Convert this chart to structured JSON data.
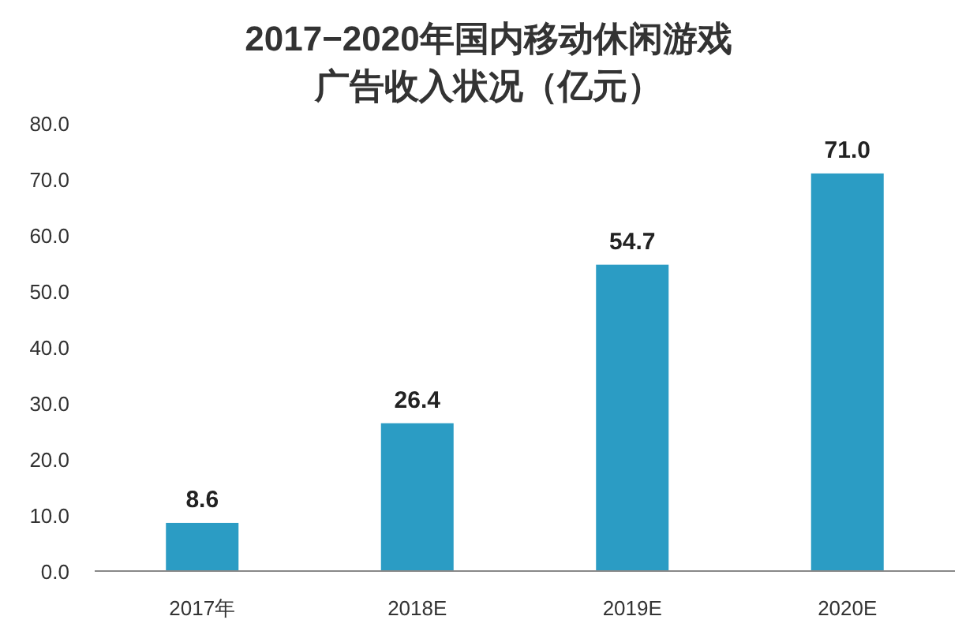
{
  "chart_data": {
    "type": "bar",
    "title": "2017−2020年国内移动休闲游戏",
    "subtitle": "广告收入状况（亿元）",
    "categories": [
      "2017年",
      "2018E",
      "2019E",
      "2020E"
    ],
    "values": [
      8.6,
      26.4,
      54.7,
      71.0
    ],
    "value_labels": [
      "8.6",
      "26.4",
      "54.7",
      "71.0"
    ],
    "color": "#2b9cc4",
    "ylim": [
      0,
      80
    ],
    "yticks": [
      {
        "value": 0,
        "label": "0.0"
      },
      {
        "value": 10,
        "label": "10.0"
      },
      {
        "value": 20,
        "label": "20.0"
      },
      {
        "value": 30,
        "label": "30.0"
      },
      {
        "value": 40,
        "label": "40.0"
      },
      {
        "value": 50,
        "label": "50.0"
      },
      {
        "value": 60,
        "label": "60.0"
      },
      {
        "value": 70,
        "label": "70.0"
      },
      {
        "value": 80,
        "label": "80.0"
      }
    ]
  }
}
